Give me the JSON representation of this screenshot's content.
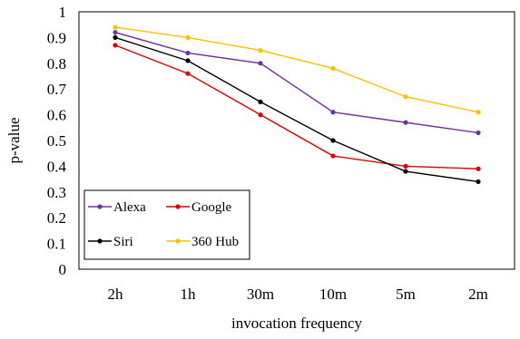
{
  "chart_data": {
    "type": "line",
    "title": "",
    "xlabel": "invocation frequency",
    "ylabel": "p-value",
    "categories": [
      "2h",
      "1h",
      "30m",
      "10m",
      "5m",
      "2m"
    ],
    "ylim": [
      0,
      1
    ],
    "yticks": [
      "0",
      "0.1",
      "0.2",
      "0.3",
      "0.4",
      "0.5",
      "0.6",
      "0.7",
      "0.8",
      "0.9",
      "1"
    ],
    "grid": false,
    "legend_position": "bottom-left",
    "series": [
      {
        "name": "Alexa",
        "color": "#7030A0",
        "values": [
          0.92,
          0.84,
          0.8,
          0.61,
          0.57,
          0.53
        ]
      },
      {
        "name": "Google",
        "color": "#E00000",
        "values": [
          0.87,
          0.76,
          0.6,
          0.44,
          0.4,
          0.39
        ]
      },
      {
        "name": "Siri",
        "color": "#000000",
        "values": [
          0.9,
          0.81,
          0.65,
          0.5,
          0.38,
          0.34
        ]
      },
      {
        "name": "360 Hub",
        "color": "#FFC000",
        "values": [
          0.94,
          0.9,
          0.85,
          0.78,
          0.67,
          0.61
        ]
      }
    ]
  }
}
